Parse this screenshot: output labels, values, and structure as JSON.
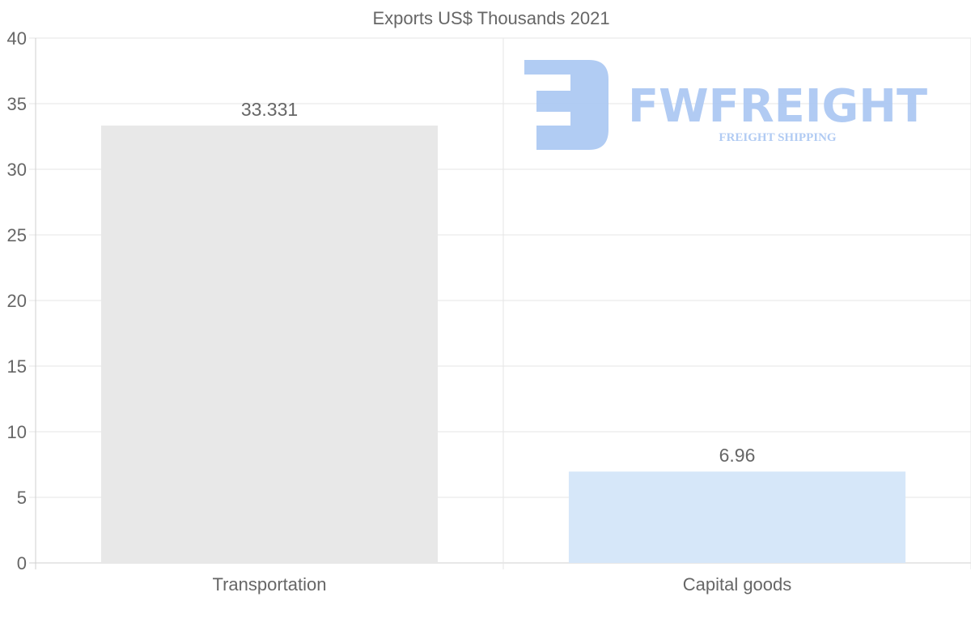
{
  "chart_data": {
    "type": "bar",
    "title": "Exports US$ Thousands 2021",
    "categories": [
      "Transportation",
      "Capital goods"
    ],
    "values": [
      33.331,
      6.96
    ],
    "data_labels": [
      "33.331",
      "6.96"
    ],
    "colors": [
      "#e8e8e8",
      "#d6e7f9"
    ],
    "xlabel": "",
    "ylabel": "",
    "ylim": [
      0,
      40
    ],
    "yticks": [
      0,
      5,
      10,
      15,
      20,
      25,
      30,
      35,
      40
    ],
    "grid": true,
    "legend": "none"
  },
  "watermark": {
    "brand": "FWFREIGHT",
    "tagline": "FREIGHT SHIPPING",
    "color": "#a9c6f2"
  }
}
